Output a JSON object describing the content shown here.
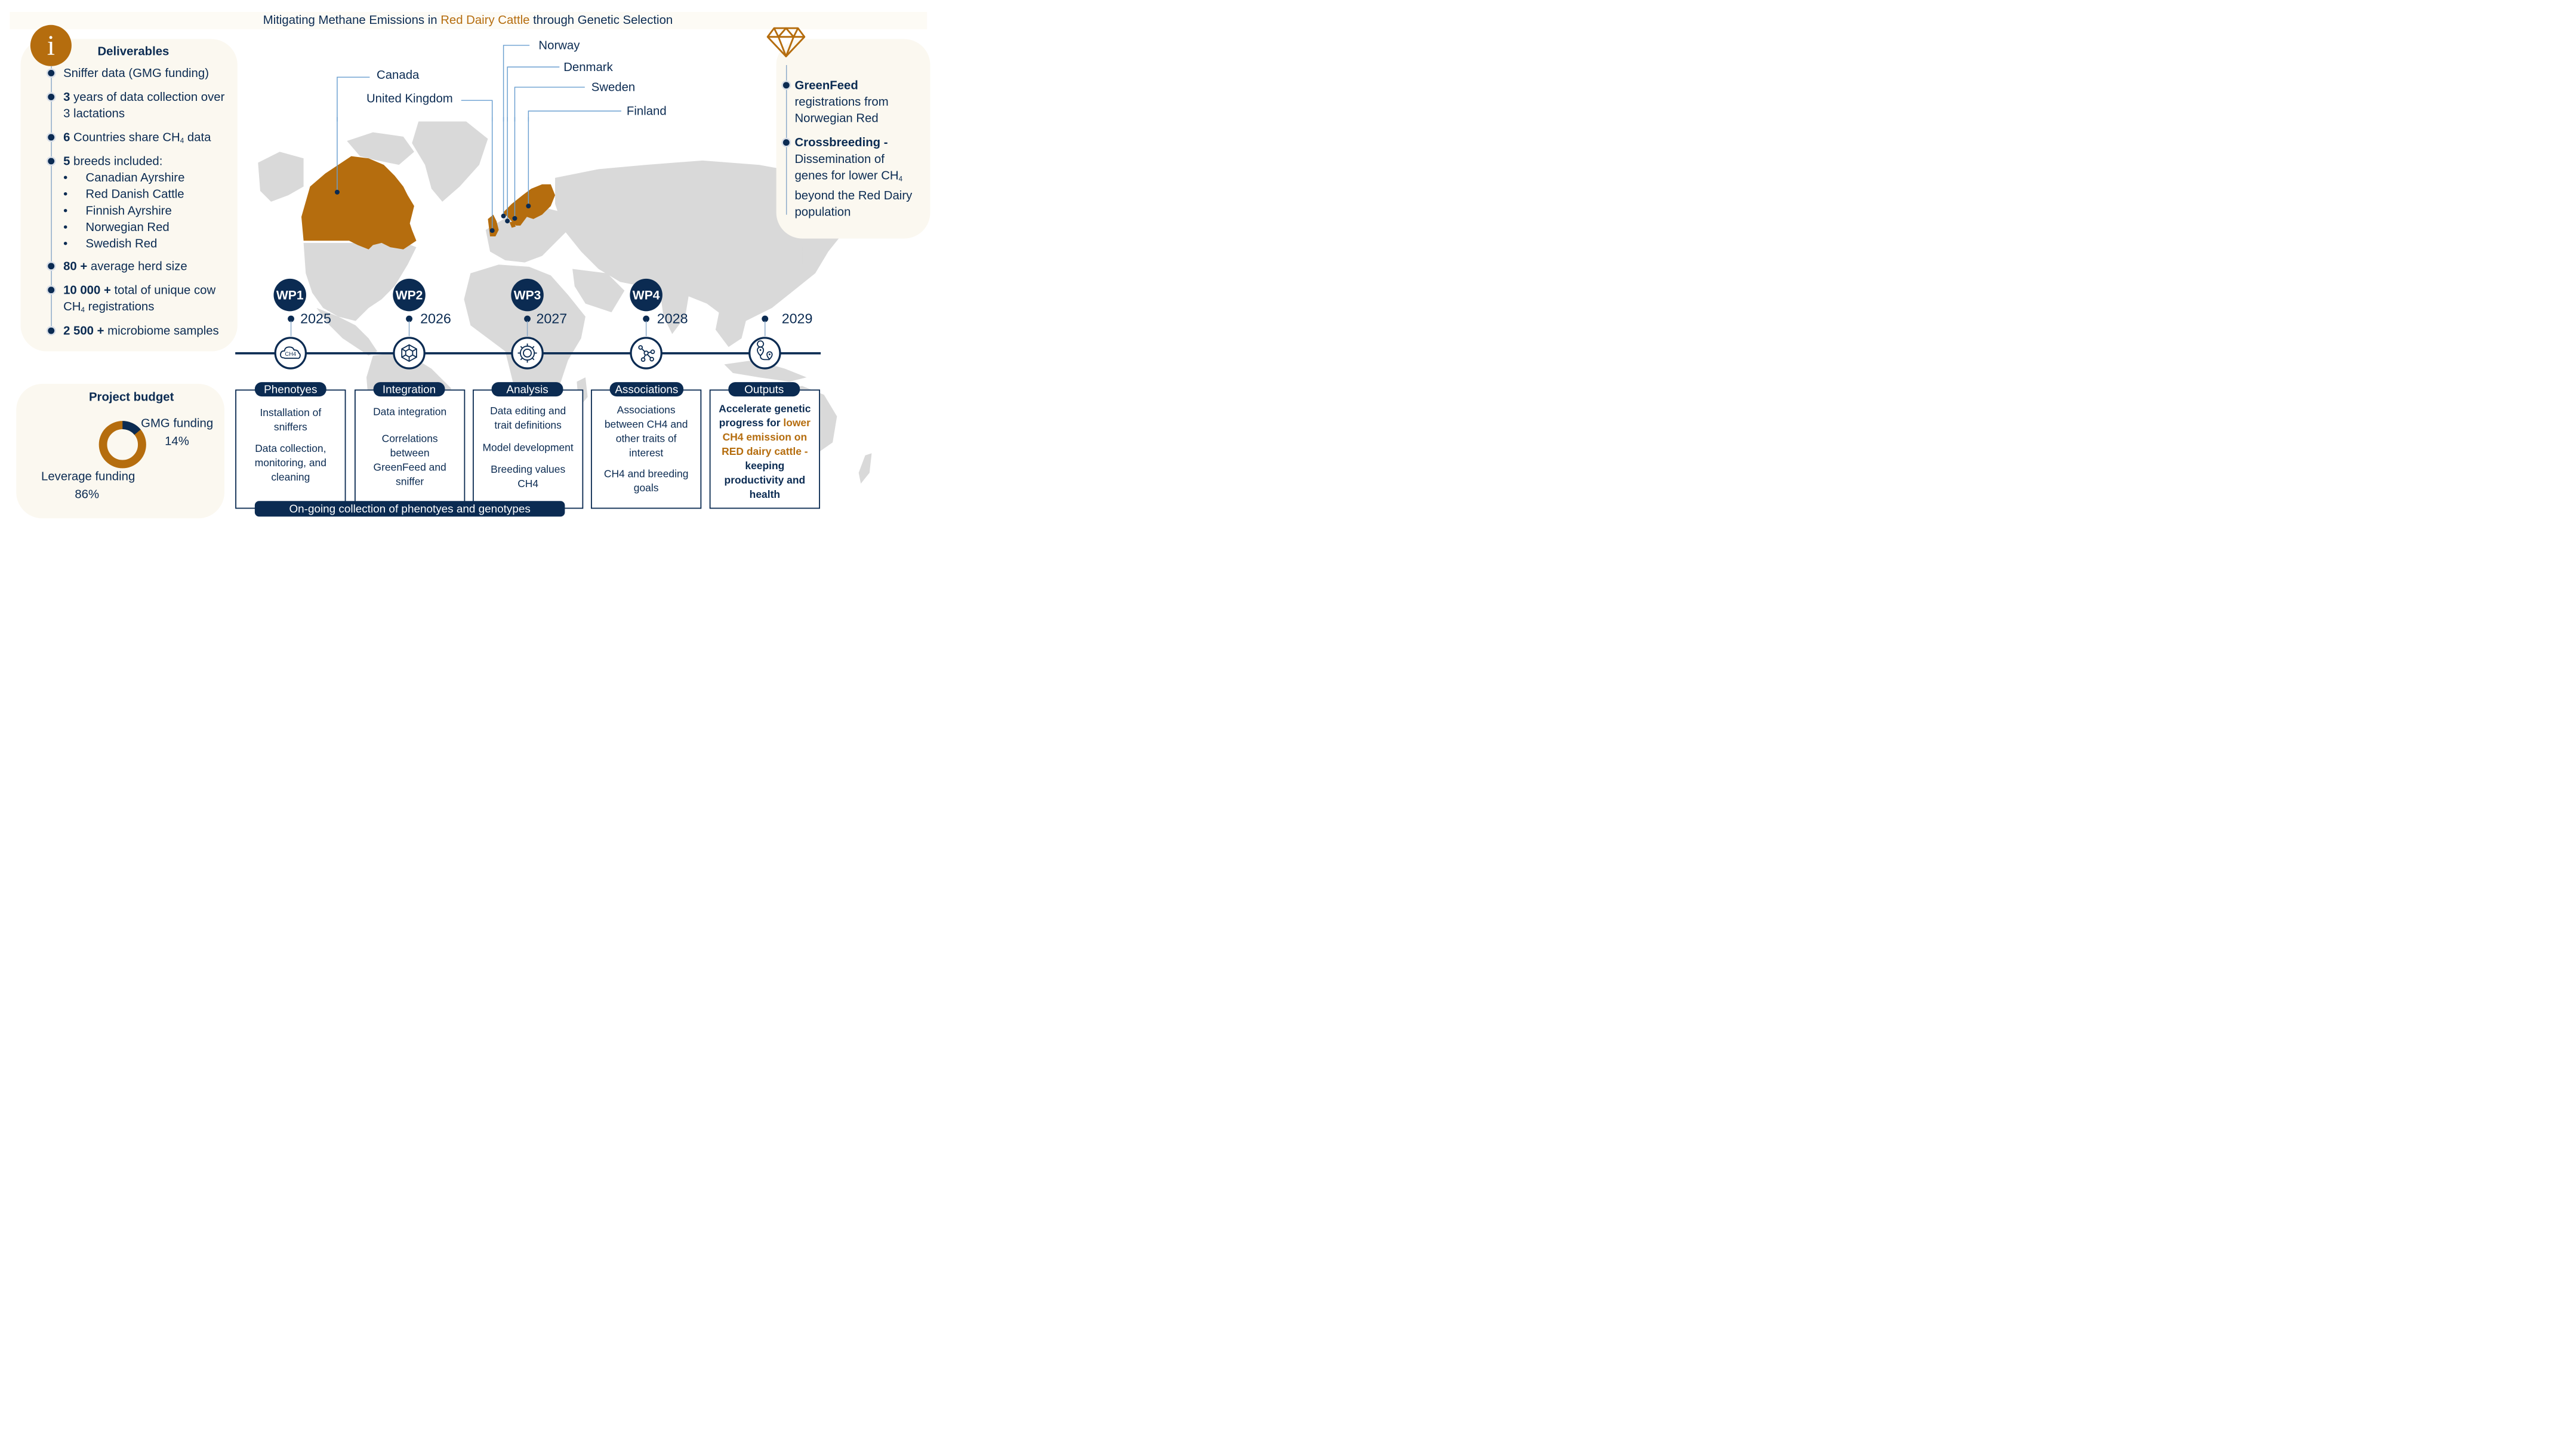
{
  "title": {
    "prefix": "Mitigating Methane Emissions in ",
    "highlight": "Red Dairy Cattle",
    "suffix": " through Genetic Selection"
  },
  "colors": {
    "navy": "#0b2b52",
    "orange": "#b56d0e",
    "map_gray": "#d9d9d9",
    "panel": "#fbf8f0"
  },
  "deliverables": {
    "icon": "info-icon",
    "icon_text": "i",
    "heading": "Deliverables",
    "items": [
      {
        "bold": "",
        "lines": [
          "Sniffer data (GMG funding)"
        ]
      },
      {
        "bold": "3",
        "lines": [
          " years of data collection over",
          "3 lactations"
        ]
      },
      {
        "bold": "6",
        "lines": [
          " Countries share CH",
          "4",
          " data"
        ]
      },
      {
        "bold": "5",
        "lines": [
          " breeds included:"
        ]
      },
      {
        "bold": "80 +",
        "lines": [
          " average herd size"
        ]
      },
      {
        "bold": "10 000 +",
        "lines": [
          " total of unique cow",
          "CH",
          "4",
          " registrations"
        ]
      },
      {
        "bold": "2 500 +",
        "lines": [
          " microbiome samples"
        ]
      }
    ],
    "breeds": [
      "Canadian Ayrshire",
      "Red Danish Cattle",
      "Finnish Ayrshire",
      "Norwegian Red",
      "Swedish Red"
    ],
    "breed_marker": "•"
  },
  "budget": {
    "heading": "Project budget",
    "gmg_label": "GMG funding",
    "gmg_pct": "14%",
    "leverage_label": "Leverage funding",
    "leverage_pct": "86%"
  },
  "budget_chart": {
    "type": "pie",
    "slices": [
      {
        "label": "GMG funding",
        "value": 14
      },
      {
        "label": "Leverage funding",
        "value": 86
      }
    ]
  },
  "countries": [
    "Canada",
    "United Kingdom",
    "Norway",
    "Denmark",
    "Sweden",
    "Finland"
  ],
  "right_panel": {
    "icon": "diamond-icon",
    "items": [
      {
        "bold": "GreenFeed",
        "lines": [
          "registrations from",
          "Norwegian Red"
        ]
      },
      {
        "bold": "Crossbreeding -",
        "lines": [
          "Dissemination of",
          "genes for lower CH",
          "4",
          "beyond the Red Dairy",
          "population"
        ]
      }
    ]
  },
  "timeline": [
    {
      "wp": "WP1",
      "year": "2025",
      "icon": "ch4-cloud-icon",
      "icon_text": "CH4",
      "phase": "Phenotyes",
      "body": [
        "Installation of",
        "sniffers",
        "",
        "Data collection,",
        "monitoring, and",
        "cleaning"
      ]
    },
    {
      "wp": "WP2",
      "year": "2026",
      "icon": "network-icon",
      "phase": "Integration",
      "body": [
        "Data integration",
        "",
        "Correlations",
        "between",
        "GreenFeed and",
        "sniffer"
      ]
    },
    {
      "wp": "WP3",
      "year": "2027",
      "icon": "gear-analysis-icon",
      "phase": "Analysis",
      "body": [
        "Data editing and",
        "trait definitions",
        "",
        "Model development",
        "",
        "Breeding values",
        "CH4"
      ]
    },
    {
      "wp": "WP4",
      "year": "2028",
      "icon": "association-icon",
      "phase": "Associations",
      "body": [
        "Associations",
        "between CH4 and",
        "other traits of",
        "interest",
        "",
        "CH4  and breeding",
        "goals"
      ]
    },
    {
      "wp": "",
      "year": "2029",
      "icon": "route-icon",
      "phase": "Outputs",
      "body_parts": [
        {
          "text": "Accelerate genetic",
          "color": "navy"
        },
        {
          "text": "progress for ",
          "color": "navy",
          "tail": "lower",
          "tail_color": "orange"
        },
        {
          "text": "CH4 emission on",
          "color": "orange"
        },
        {
          "text": "RED dairy cattle -",
          "color": "orange"
        },
        {
          "text": "keeping",
          "color": "navy"
        },
        {
          "text": "productivity and",
          "color": "navy"
        },
        {
          "text": "health",
          "color": "navy"
        }
      ]
    }
  ],
  "ongoing_banner": "On-going collection of phenotyes and genotypes"
}
